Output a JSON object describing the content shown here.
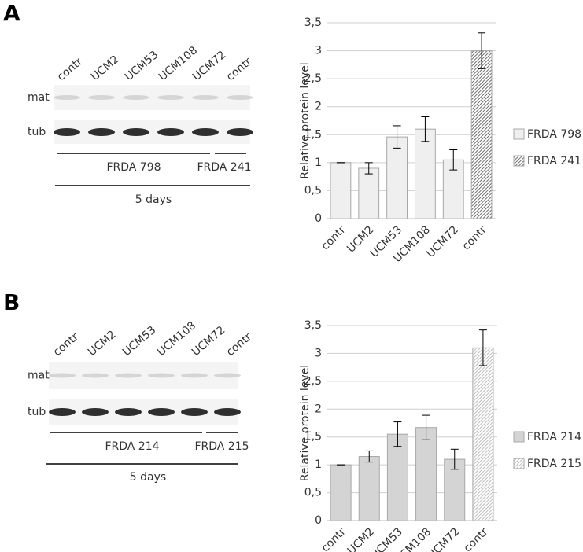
{
  "chart_data": [
    {
      "type": "bar",
      "y_label": "Relative protein level",
      "categories": [
        "contr",
        "UCM2",
        "UCM53",
        "UCM108",
        "UCM72",
        "contr"
      ],
      "series": [
        {
          "name": "FRDA 798",
          "color": "#efefef",
          "values": [
            1,
            0.9,
            1.46,
            1.6,
            1.05,
            null
          ],
          "errors": [
            0,
            0.1,
            0.2,
            0.22,
            0.18,
            null
          ]
        },
        {
          "name": "FRDA 241",
          "color": "#707070",
          "pattern": "hatch",
          "values": [
            null,
            null,
            null,
            null,
            null,
            3.0
          ],
          "errors": [
            null,
            null,
            null,
            null,
            null,
            0.32
          ]
        }
      ],
      "ylim": [
        0,
        3.5
      ],
      "yticks": [
        0,
        {
          "value": 0.5,
          "label": "0,5"
        },
        1,
        {
          "value": 1.5,
          "label": "1,5"
        },
        2,
        {
          "value": 2.5,
          "label": "2,5"
        },
        3,
        {
          "value": 3.5,
          "label": "3,5"
        }
      ],
      "grid": true,
      "legend": "right"
    },
    {
      "type": "bar",
      "y_label": "Relative protein level",
      "categories": [
        "contr",
        "UCM2",
        "UCM53",
        "UCM108",
        "UCM72",
        "contr"
      ],
      "series": [
        {
          "name": "FRDA 214",
          "color": "#d4d4d4",
          "values": [
            1,
            1.15,
            1.55,
            1.67,
            1.1,
            null
          ],
          "errors": [
            0,
            0.1,
            0.22,
            0.22,
            0.18,
            null
          ]
        },
        {
          "name": "FRDA 215",
          "color": "#bdbdbd",
          "pattern": "hatch",
          "values": [
            null,
            null,
            null,
            null,
            null,
            3.1
          ],
          "errors": [
            null,
            null,
            null,
            null,
            null,
            0.32
          ]
        }
      ],
      "ylim": [
        0,
        3.5
      ],
      "yticks": [
        0,
        {
          "value": 0.5,
          "label": "0,5"
        },
        1,
        {
          "value": 1.5,
          "label": "1,5"
        },
        2,
        {
          "value": 2.5,
          "label": "2,5"
        },
        3,
        {
          "value": 3.5,
          "label": "3,5"
        }
      ],
      "grid": true,
      "legend": "right"
    }
  ],
  "blots": [
    {
      "panel": "A",
      "lanes": [
        "contr",
        "UCM2",
        "UCM53",
        "UCM108",
        "UCM72",
        "contr"
      ],
      "rows": [
        "mat",
        "tub"
      ],
      "groups": [
        "FRDA 798",
        "FRDA 241"
      ],
      "duration": "5 days"
    },
    {
      "panel": "B",
      "lanes": [
        "contr",
        "UCM2",
        "UCM53",
        "UCM108",
        "UCM72",
        "contr"
      ],
      "rows": [
        "mat",
        "tub"
      ],
      "groups": [
        "FRDA 214",
        "FRDA 215"
      ],
      "duration": "5 days"
    }
  ]
}
